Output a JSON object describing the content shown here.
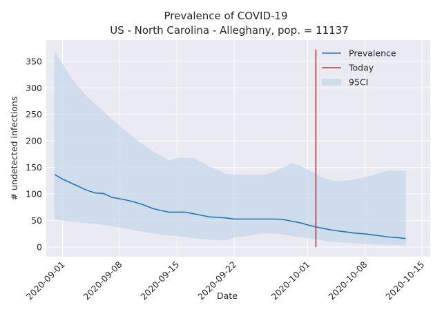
{
  "chart_data": {
    "type": "line",
    "title": "Prevalence of COVID-19",
    "subtitle": "US - North Carolina - Alleghany, pop. = 11137",
    "xlabel": "Date",
    "ylabel": "# undetected infections",
    "x_ticks": [
      "2020-09-01",
      "2020-09-08",
      "2020-09-15",
      "2020-09-22",
      "2020-10-01",
      "2020-10-08",
      "2020-10-15"
    ],
    "y_ticks": [
      0,
      50,
      100,
      150,
      200,
      250,
      300,
      350
    ],
    "xlim": [
      "2020-08-30",
      "2020-10-16"
    ],
    "ylim": [
      -18,
      390
    ],
    "grid": true,
    "legend_position": "top-right",
    "colors": {
      "prevalence": "#1f77b4",
      "today": "#d62728",
      "ci_fill": "#c6d7ea",
      "plot_bg": "#eaeaf2",
      "grid": "#ffffff"
    },
    "today": {
      "date": "2020-10-02",
      "y_range": [
        0,
        372
      ]
    },
    "legend": [
      {
        "label": "Prevalence",
        "kind": "line",
        "color": "#1f77b4"
      },
      {
        "label": "Today",
        "kind": "line",
        "color": "#d62728"
      },
      {
        "label": "95CI",
        "kind": "patch",
        "color": "#c6d7ea"
      }
    ],
    "series": [
      {
        "name": "Prevalence",
        "x": [
          "2020-08-31",
          "2020-09-01",
          "2020-09-02",
          "2020-09-03",
          "2020-09-04",
          "2020-09-05",
          "2020-09-06",
          "2020-09-07",
          "2020-09-08",
          "2020-09-09",
          "2020-09-10",
          "2020-09-11",
          "2020-09-12",
          "2020-09-13",
          "2020-09-14",
          "2020-09-15",
          "2020-09-16",
          "2020-09-17",
          "2020-09-18",
          "2020-09-19",
          "2020-09-20",
          "2020-09-21",
          "2020-09-22",
          "2020-09-23",
          "2020-09-24",
          "2020-09-25",
          "2020-09-26",
          "2020-09-27",
          "2020-09-28",
          "2020-09-29",
          "2020-09-30",
          "2020-10-01",
          "2020-10-02",
          "2020-10-03",
          "2020-10-04",
          "2020-10-05",
          "2020-10-06",
          "2020-10-07",
          "2020-10-08",
          "2020-10-09",
          "2020-10-10",
          "2020-10-11",
          "2020-10-12",
          "2020-10-13"
        ],
        "values": [
          137,
          128,
          121,
          114,
          107,
          102,
          101,
          94,
          91,
          88,
          84,
          79,
          73,
          69,
          66,
          66,
          66,
          63,
          60,
          57,
          56,
          55,
          53,
          53,
          53,
          53,
          53,
          53,
          52,
          49,
          46,
          42,
          38,
          35,
          32,
          30,
          28,
          26,
          25,
          23,
          21,
          19,
          18,
          16
        ]
      },
      {
        "name": "95CI",
        "x": [
          "2020-08-31",
          "2020-09-02",
          "2020-09-04",
          "2020-09-06",
          "2020-09-08",
          "2020-09-10",
          "2020-09-12",
          "2020-09-14",
          "2020-09-15",
          "2020-09-16",
          "2020-09-17",
          "2020-09-19",
          "2020-09-21",
          "2020-09-22",
          "2020-09-23",
          "2020-09-24",
          "2020-09-25",
          "2020-09-26",
          "2020-09-27",
          "2020-09-28",
          "2020-09-29",
          "2020-09-30",
          "2020-10-01",
          "2020-10-02",
          "2020-10-03",
          "2020-10-04",
          "2020-10-05",
          "2020-10-07",
          "2020-10-09",
          "2020-10-11",
          "2020-10-13"
        ],
        "upper": [
          370,
          320,
          283,
          255,
          228,
          203,
          181,
          163,
          168,
          168,
          168,
          152,
          138,
          137,
          137,
          136,
          136,
          137,
          143,
          150,
          158,
          154,
          146,
          138,
          130,
          125,
          124,
          128,
          136,
          145,
          143
        ],
        "lower": [
          52,
          48,
          45,
          42,
          37,
          31,
          26,
          22,
          21,
          19,
          17,
          14,
          13,
          18,
          20,
          22,
          25,
          26,
          25,
          24,
          21,
          19,
          17,
          15,
          12,
          10,
          9,
          7,
          5,
          4,
          3
        ]
      }
    ]
  }
}
